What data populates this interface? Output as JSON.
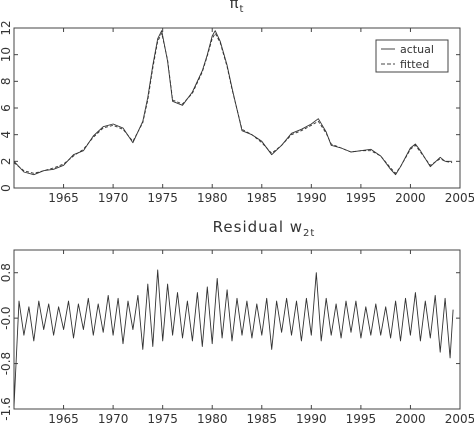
{
  "chart_data": [
    {
      "type": "line",
      "title": "π",
      "title_subscript": "t",
      "xlim": [
        1960,
        2005
      ],
      "ylim": [
        0,
        12
      ],
      "xticks": [
        "1965",
        "1970",
        "1975",
        "1980",
        "1985",
        "1990",
        "1995",
        "2000",
        "2005"
      ],
      "yticks": [
        "0",
        "2",
        "4",
        "6",
        "8",
        "10",
        "12"
      ],
      "grid": false,
      "legend_position": "top-right",
      "series": [
        {
          "name": "actual",
          "x": [
            1960.0,
            1961.0,
            1962.0,
            1963.0,
            1964.0,
            1965.0,
            1966.0,
            1967.0,
            1968.0,
            1969.0,
            1970.0,
            1971.0,
            1972.0,
            1973.0,
            1973.5,
            1974.0,
            1974.5,
            1974.9,
            1975.5,
            1976.0,
            1977.0,
            1978.0,
            1979.0,
            1979.5,
            1980.0,
            1980.3,
            1980.8,
            1981.5,
            1982.0,
            1983.0,
            1984.0,
            1985.0,
            1986.0,
            1987.0,
            1988.0,
            1989.0,
            1990.0,
            1990.7,
            1991.5,
            1992.0,
            1993.0,
            1994.0,
            1995.0,
            1996.0,
            1997.0,
            1998.0,
            1998.5,
            1999.0,
            2000.0,
            2000.5,
            2001.0,
            2002.0,
            2003.0,
            2003.5,
            2004.2
          ],
          "values": [
            2.0,
            1.2,
            1.0,
            1.3,
            1.4,
            1.7,
            2.5,
            2.8,
            3.9,
            4.6,
            4.8,
            4.5,
            3.4,
            5.0,
            6.8,
            9.2,
            11.2,
            11.8,
            9.5,
            6.5,
            6.2,
            7.2,
            8.8,
            10.0,
            11.4,
            11.8,
            11.0,
            9.2,
            7.5,
            4.3,
            4.0,
            3.5,
            2.5,
            3.2,
            4.1,
            4.4,
            4.8,
            5.2,
            4.2,
            3.2,
            3.0,
            2.7,
            2.8,
            2.9,
            2.4,
            1.4,
            1.0,
            1.6,
            3.0,
            3.3,
            2.8,
            1.6,
            2.3,
            2.0,
            2.0
          ]
        },
        {
          "name": "fitted",
          "x": [
            1960.0,
            1961.0,
            1962.0,
            1963.0,
            1964.0,
            1965.0,
            1966.0,
            1967.0,
            1968.0,
            1969.0,
            1970.0,
            1971.0,
            1972.0,
            1973.0,
            1973.5,
            1974.0,
            1974.5,
            1974.9,
            1975.5,
            1976.0,
            1977.0,
            1978.0,
            1979.0,
            1979.5,
            1980.0,
            1980.3,
            1980.8,
            1981.5,
            1982.0,
            1983.0,
            1984.0,
            1985.0,
            1986.0,
            1987.0,
            1988.0,
            1989.0,
            1990.0,
            1990.7,
            1991.5,
            1992.0,
            1993.0,
            1994.0,
            1995.0,
            1996.0,
            1997.0,
            1998.0,
            1998.5,
            1999.0,
            2000.0,
            2000.5,
            2001.0,
            2002.0,
            2003.0,
            2003.5,
            2004.2
          ],
          "values": [
            1.9,
            1.3,
            1.1,
            1.3,
            1.5,
            1.8,
            2.4,
            2.9,
            3.8,
            4.5,
            4.7,
            4.4,
            3.5,
            4.9,
            6.6,
            9.0,
            11.0,
            11.6,
            9.6,
            6.6,
            6.3,
            7.1,
            8.7,
            9.9,
            11.2,
            11.6,
            10.9,
            9.1,
            7.4,
            4.4,
            4.0,
            3.4,
            2.6,
            3.2,
            4.0,
            4.3,
            4.7,
            5.0,
            4.1,
            3.3,
            3.0,
            2.7,
            2.8,
            2.8,
            2.4,
            1.5,
            1.1,
            1.6,
            2.9,
            3.2,
            2.7,
            1.7,
            2.2,
            2.0,
            1.9
          ]
        }
      ]
    },
    {
      "type": "line",
      "title": "Residual w",
      "title_subscript": "2t",
      "xlim": [
        1960,
        2005
      ],
      "ylim": [
        -1.6,
        1.2
      ],
      "xticks": [
        "1965",
        "1970",
        "1975",
        "1980",
        "1985",
        "1990",
        "1995",
        "2000",
        "2005"
      ],
      "yticks": [
        "-1.6",
        "-0.8",
        "-0.0",
        "0.8"
      ],
      "grid": false,
      "series": [
        {
          "name": "",
          "x": [
            1960.0,
            1960.5,
            1961.0,
            1961.5,
            1962.0,
            1962.5,
            1963.0,
            1963.5,
            1964.0,
            1964.5,
            1965.0,
            1965.5,
            1966.0,
            1966.5,
            1967.0,
            1967.5,
            1968.0,
            1968.5,
            1969.0,
            1969.5,
            1970.0,
            1970.5,
            1971.0,
            1971.5,
            1972.0,
            1972.5,
            1973.0,
            1973.5,
            1974.0,
            1974.5,
            1975.0,
            1975.5,
            1976.0,
            1976.5,
            1977.0,
            1977.5,
            1978.0,
            1978.5,
            1979.0,
            1979.5,
            1980.0,
            1980.5,
            1981.0,
            1981.5,
            1982.0,
            1982.5,
            1983.0,
            1983.5,
            1984.0,
            1984.5,
            1985.0,
            1985.5,
            1986.0,
            1986.5,
            1987.0,
            1987.5,
            1988.0,
            1988.5,
            1989.0,
            1989.5,
            1990.0,
            1990.5,
            1991.0,
            1991.5,
            1992.0,
            1992.5,
            1993.0,
            1993.5,
            1994.0,
            1994.5,
            1995.0,
            1995.5,
            1996.0,
            1996.5,
            1997.0,
            1997.5,
            1998.0,
            1998.5,
            1999.0,
            1999.5,
            2000.0,
            2000.5,
            2001.0,
            2001.5,
            2002.0,
            2002.5,
            2003.0,
            2003.5,
            2004.0,
            2004.3
          ],
          "values": [
            -1.55,
            0.3,
            -0.3,
            0.2,
            -0.4,
            0.3,
            -0.2,
            0.25,
            -0.3,
            0.2,
            -0.2,
            0.3,
            -0.35,
            0.25,
            -0.2,
            0.35,
            -0.3,
            0.25,
            -0.25,
            0.4,
            -0.3,
            0.35,
            -0.45,
            0.3,
            -0.2,
            0.4,
            -0.55,
            0.6,
            -0.5,
            0.85,
            -0.4,
            0.6,
            -0.3,
            0.45,
            -0.35,
            0.3,
            -0.4,
            0.45,
            -0.5,
            0.55,
            -0.45,
            0.7,
            -0.35,
            0.5,
            -0.4,
            0.35,
            -0.3,
            0.3,
            -0.35,
            0.25,
            -0.3,
            0.35,
            -0.55,
            0.3,
            -0.25,
            0.35,
            -0.3,
            0.3,
            -0.4,
            0.35,
            -0.3,
            0.8,
            -0.4,
            0.35,
            -0.3,
            0.25,
            -0.35,
            0.3,
            -0.25,
            0.3,
            -0.35,
            0.2,
            -0.3,
            0.25,
            -0.3,
            0.2,
            -0.35,
            0.3,
            -0.4,
            0.35,
            -0.3,
            0.45,
            -0.4,
            0.3,
            -0.35,
            0.4,
            -0.6,
            0.35,
            -0.7,
            0.15
          ]
        }
      ]
    }
  ],
  "legend": {
    "actual_label": "actual",
    "fitted_label": "fitted"
  }
}
